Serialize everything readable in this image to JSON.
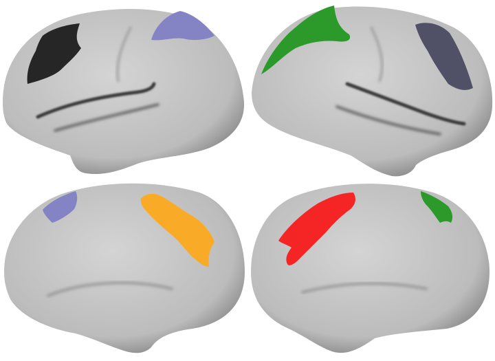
{
  "figure": {
    "background": "#ffffff",
    "cortex_color": "#c4c4c4",
    "panels": [
      {
        "id": "left-lateral",
        "regions": [
          {
            "name": "black-region",
            "color": "#262626"
          },
          {
            "name": "lavender-region",
            "color": "#8484c4"
          }
        ]
      },
      {
        "id": "right-lateral",
        "regions": [
          {
            "name": "green-region",
            "color": "#2b9a2b"
          },
          {
            "name": "slate-region",
            "color": "#505066"
          }
        ]
      },
      {
        "id": "left-medial",
        "regions": [
          {
            "name": "lavender-region",
            "color": "#8484c4"
          },
          {
            "name": "orange-region",
            "color": "#f9ab28"
          }
        ]
      },
      {
        "id": "right-medial",
        "regions": [
          {
            "name": "red-region",
            "color": "#f52525"
          },
          {
            "name": "green-region",
            "color": "#2b9a2b"
          }
        ]
      }
    ]
  }
}
